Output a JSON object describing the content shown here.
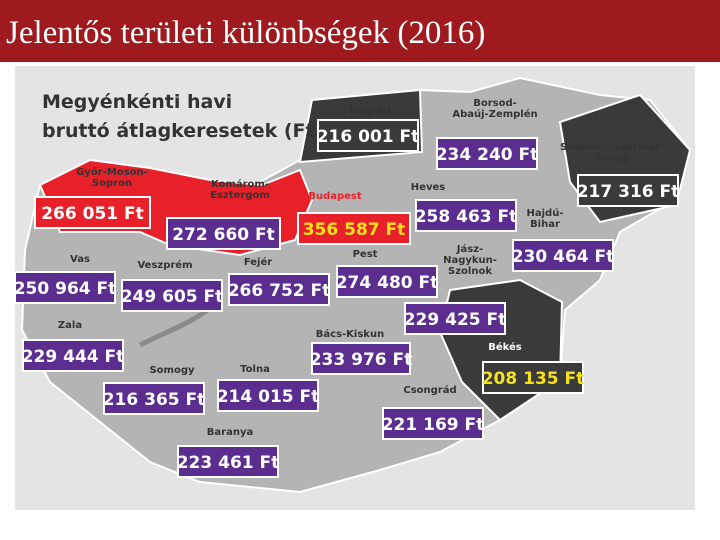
{
  "title": "Jelentős területi különbségek (2016)",
  "map": {
    "heading": [
      "Megyénkénti havi",
      "bruttó átlagkeresetek (Ft)"
    ],
    "regions": [
      {
        "name": [
          "Nógrád"
        ],
        "value": "216 001 Ft"
      },
      {
        "name": [
          "Borsod-",
          "Abaúj-Zemplén"
        ],
        "value": "234 240 Ft"
      },
      {
        "name": [
          "Szabolcs-Szatmár-",
          "Bereg"
        ],
        "value": "217 316 Ft"
      },
      {
        "name": [
          "Győr-Moson-",
          "Sopron"
        ],
        "value": "266 051 Ft"
      },
      {
        "name": [
          "Komárom-",
          "Esztergom"
        ],
        "value": "272 660 Ft"
      },
      {
        "name": [
          "Budapest"
        ],
        "value": "356 587 Ft"
      },
      {
        "name": [
          "Heves"
        ],
        "value": "258 463 Ft"
      },
      {
        "name": [
          "Hajdú-",
          "Bihar"
        ],
        "value": "230 464 Ft"
      },
      {
        "name": [
          "Vas"
        ],
        "value": "250 964 Ft"
      },
      {
        "name": [
          "Veszprém"
        ],
        "value": "249 605 Ft"
      },
      {
        "name": [
          "Fejér"
        ],
        "value": "266 752 Ft"
      },
      {
        "name": [
          "Pest"
        ],
        "value": "274 480 Ft"
      },
      {
        "name": [
          "Jász-",
          "Nagykun-",
          "Szolnok"
        ],
        "value": "229 425 Ft"
      },
      {
        "name": [
          "Zala"
        ],
        "value": "229 444 Ft"
      },
      {
        "name": [
          "Bács-Kiskun"
        ],
        "value": "233 976 Ft"
      },
      {
        "name": [
          "Békés"
        ],
        "value": "208 135 Ft"
      },
      {
        "name": [
          "Somogy"
        ],
        "value": "216 365 Ft"
      },
      {
        "name": [
          "Tolna"
        ],
        "value": "214 015 Ft"
      },
      {
        "name": [
          "Csongrád"
        ],
        "value": "221 169 Ft"
      },
      {
        "name": [
          "Baranya"
        ],
        "value": "223 461 Ft"
      }
    ]
  }
}
